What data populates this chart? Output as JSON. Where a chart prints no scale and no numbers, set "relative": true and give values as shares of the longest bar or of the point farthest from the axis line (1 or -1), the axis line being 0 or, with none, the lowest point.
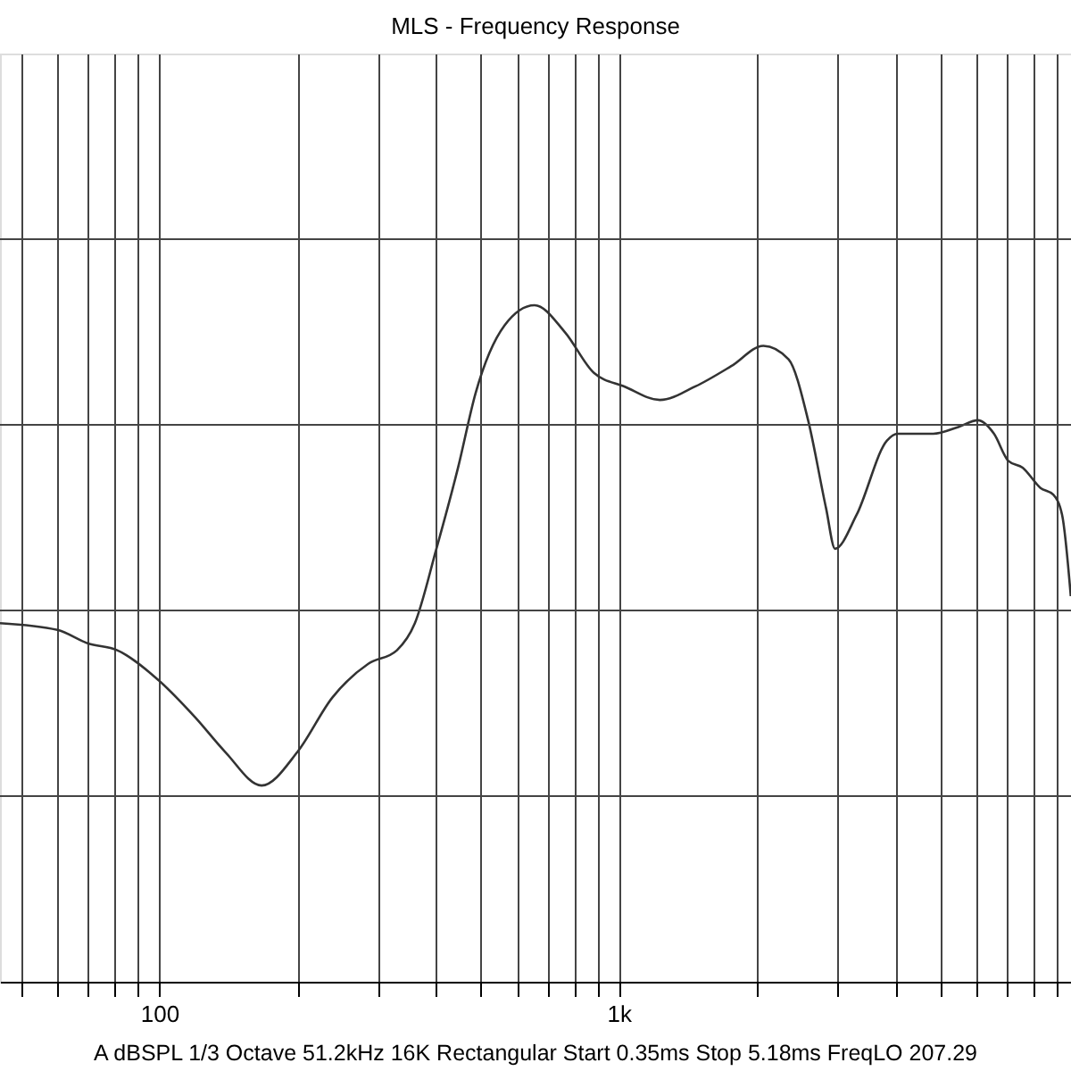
{
  "chart_data": {
    "type": "line",
    "title": "MLS - Frequency Response",
    "relative": true,
    "log": "x",
    "grid": true,
    "marker": "none",
    "line_style": "solid",
    "xlim": [
      45,
      9650
    ],
    "xticks": [
      {
        "value": 50,
        "label": null
      },
      {
        "value": 60,
        "label": null
      },
      {
        "value": 70,
        "label": null
      },
      {
        "value": 80,
        "label": null
      },
      {
        "value": 90,
        "label": null
      },
      100,
      {
        "value": 200,
        "label": null
      },
      {
        "value": 300,
        "label": null
      },
      {
        "value": 400,
        "label": null
      },
      {
        "value": 500,
        "label": null
      },
      {
        "value": 600,
        "label": null
      },
      {
        "value": 700,
        "label": null
      },
      {
        "value": 800,
        "label": null
      },
      {
        "value": 900,
        "label": null
      },
      {
        "value": 1000,
        "label": "1k"
      },
      {
        "value": 2000,
        "label": null
      },
      {
        "value": 3000,
        "label": null
      },
      {
        "value": 4000,
        "label": null
      },
      {
        "value": 5000,
        "label": null
      },
      {
        "value": 6000,
        "label": null
      },
      {
        "value": 7000,
        "label": null
      },
      {
        "value": 8000,
        "label": null
      },
      {
        "value": 9000,
        "label": null
      }
    ],
    "annotations": [
      "A   dBSPL   1/3 Octave   51.2kHz   16K   Rectangular   Start 0.35ms   Stop 5.18ms   FreqLO 207.29"
    ],
    "series": [
      {
        "color": "#333333",
        "x": [
          45,
          60,
          70,
          81,
          98,
          120,
          139,
          167,
          200,
          238,
          285,
          329,
          360,
          401,
          447,
          488,
          564,
          656,
          764,
          883,
          1028,
          1229,
          1469,
          1758,
          2065,
          2343,
          2584,
          2827,
          2958,
          3294,
          3837,
          4047,
          4585,
          4838,
          5486,
          6053,
          6561,
          7047,
          7573,
          8280,
          8827,
          9230,
          9640
        ],
        "values": [
          0.53,
          0.52,
          0.5,
          0.49,
          0.45,
          0.39,
          0.34,
          0.29,
          0.34,
          0.42,
          0.47,
          0.49,
          0.53,
          0.64,
          0.76,
          0.87,
          0.97,
          1,
          0.96,
          0.9,
          0.88,
          0.86,
          0.88,
          0.91,
          0.94,
          0.92,
          0.83,
          0.7,
          0.64,
          0.69,
          0.8,
          0.81,
          0.81,
          0.81,
          0.82,
          0.83,
          0.81,
          0.77,
          0.76,
          0.73,
          0.72,
          0.69,
          0.57
        ]
      }
    ]
  }
}
